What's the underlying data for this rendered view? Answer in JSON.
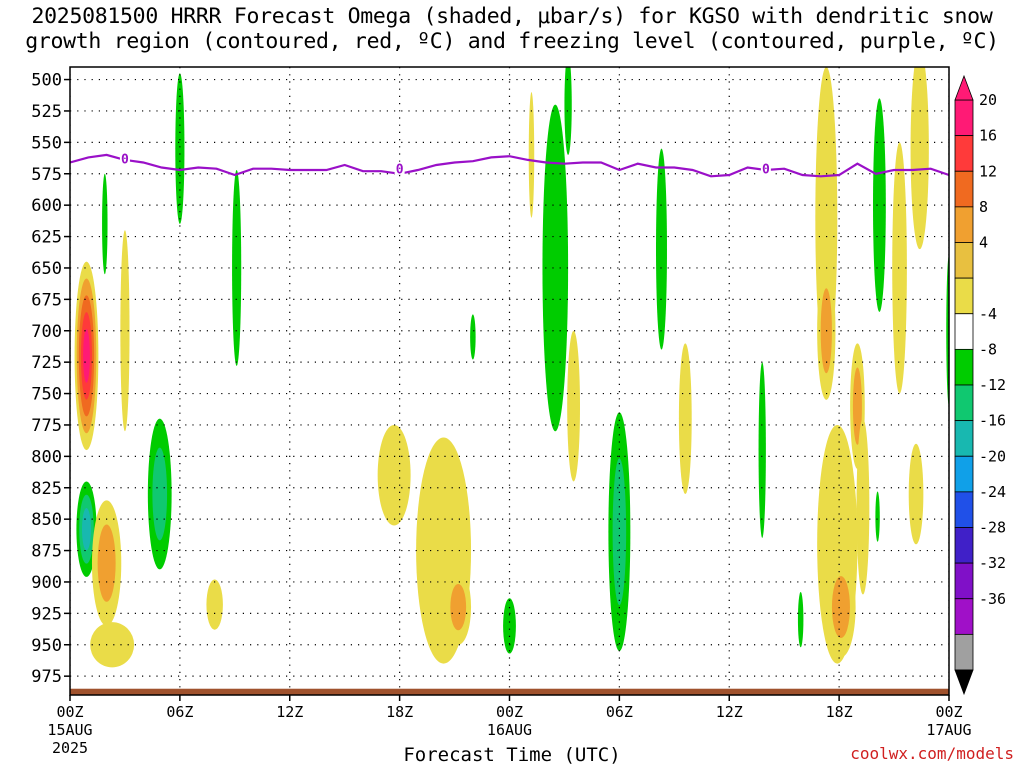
{
  "title": {
    "line1": "2025081500 HRRR Forecast Omega (shaded, μbar/s) for KGSO with dendritic snow",
    "line2": "growth region (contoured, red, ºC) and freezing level (contoured, purple, ºC)"
  },
  "credit": "coolwx.com/models",
  "chart_data": {
    "type": "heatmap",
    "xlabel": "Forecast Time (UTC)",
    "x_ticks": [
      {
        "h": 0,
        "label": "00Z",
        "sub": "15AUG",
        "sub2": "2025"
      },
      {
        "h": 6,
        "label": "06Z",
        "sub": "",
        "sub2": ""
      },
      {
        "h": 12,
        "label": "12Z",
        "sub": "",
        "sub2": ""
      },
      {
        "h": 18,
        "label": "18Z",
        "sub": "",
        "sub2": ""
      },
      {
        "h": 24,
        "label": "00Z",
        "sub": "16AUG",
        "sub2": ""
      },
      {
        "h": 30,
        "label": "06Z",
        "sub": "",
        "sub2": ""
      },
      {
        "h": 36,
        "label": "12Z",
        "sub": "",
        "sub2": ""
      },
      {
        "h": 42,
        "label": "18Z",
        "sub": "",
        "sub2": ""
      },
      {
        "h": 48,
        "label": "00Z",
        "sub": "17AUG",
        "sub2": ""
      }
    ],
    "y_ticks": [
      500,
      525,
      550,
      575,
      600,
      625,
      650,
      675,
      700,
      725,
      750,
      775,
      800,
      825,
      850,
      875,
      900,
      925,
      950,
      975
    ],
    "xlim": [
      0,
      48
    ],
    "ylim": [
      490,
      990
    ],
    "colorbar": {
      "labels": [
        "20",
        "16",
        "12",
        "8",
        "4",
        "-4",
        "-8",
        "-12",
        "-16",
        "-20",
        "-24",
        "-28",
        "-32",
        "-36"
      ],
      "colors": [
        "#ff1a75",
        "#ff3a3a",
        "#f06a20",
        "#f0a030",
        "#e8c040",
        "#eadc48",
        "#ffffff",
        "#00cc00",
        "#10c870",
        "#18b8b0",
        "#10a0e8",
        "#2050e8",
        "#4020c8",
        "#8010c8",
        "#a010c8",
        "#a0a0a0"
      ]
    },
    "freezing_level": {
      "label": "0",
      "points": [
        [
          0,
          566
        ],
        [
          1,
          562
        ],
        [
          2,
          560
        ],
        [
          3,
          564
        ],
        [
          4,
          566
        ],
        [
          5,
          570
        ],
        [
          6,
          572
        ],
        [
          7,
          570
        ],
        [
          8,
          571
        ],
        [
          9,
          576
        ],
        [
          10,
          571
        ],
        [
          11,
          571
        ],
        [
          12,
          572
        ],
        [
          13,
          572
        ],
        [
          14,
          572
        ],
        [
          15,
          568
        ],
        [
          16,
          573
        ],
        [
          17,
          573
        ],
        [
          18,
          575
        ],
        [
          19,
          572
        ],
        [
          20,
          568
        ],
        [
          21,
          566
        ],
        [
          22,
          565
        ],
        [
          23,
          562
        ],
        [
          24,
          561
        ],
        [
          25,
          564
        ],
        [
          26,
          566
        ],
        [
          27,
          567
        ],
        [
          28,
          566
        ],
        [
          29,
          566
        ],
        [
          30,
          572
        ],
        [
          31,
          567
        ],
        [
          32,
          570
        ],
        [
          33,
          570
        ],
        [
          34,
          572
        ],
        [
          35,
          577
        ],
        [
          36,
          576
        ],
        [
          37,
          570
        ],
        [
          38,
          572
        ],
        [
          39,
          571
        ],
        [
          40,
          576
        ],
        [
          41,
          577
        ],
        [
          42,
          576
        ],
        [
          43,
          567
        ],
        [
          44,
          575
        ],
        [
          45,
          572
        ],
        [
          46,
          572
        ],
        [
          47,
          571
        ],
        [
          48,
          576
        ]
      ],
      "label_positions": [
        [
          3,
          563
        ],
        [
          18,
          571
        ],
        [
          38,
          571
        ]
      ]
    },
    "omega_features": [
      {
        "t": 0.9,
        "p": 720,
        "dt": 0.65,
        "dp": 75,
        "v": 20
      },
      {
        "t": 0.9,
        "p": 858,
        "dt": 0.55,
        "dp": 38,
        "v": -14
      },
      {
        "t": 2.0,
        "p": 885,
        "dt": 0.8,
        "dp": 50,
        "v": 11
      },
      {
        "t": 2.3,
        "p": 950,
        "dt": 1.2,
        "dp": 18,
        "v": 5
      },
      {
        "t": 3.0,
        "p": 700,
        "dt": 0.25,
        "dp": 80,
        "v": 5
      },
      {
        "t": 1.9,
        "p": 615,
        "dt": 0.15,
        "dp": 40,
        "v": -6
      },
      {
        "t": 4.9,
        "p": 830,
        "dt": 0.65,
        "dp": 60,
        "v": -11
      },
      {
        "t": 6.0,
        "p": 555,
        "dt": 0.25,
        "dp": 60,
        "v": -6
      },
      {
        "t": 7.9,
        "p": 918,
        "dt": 0.45,
        "dp": 20,
        "v": 6
      },
      {
        "t": 9.1,
        "p": 650,
        "dt": 0.25,
        "dp": 78,
        "v": -6
      },
      {
        "t": 17.7,
        "p": 815,
        "dt": 0.9,
        "dp": 40,
        "v": 6
      },
      {
        "t": 20.4,
        "p": 875,
        "dt": 1.5,
        "dp": 90,
        "v": 7
      },
      {
        "t": 21.2,
        "p": 920,
        "dt": 0.7,
        "dp": 30,
        "v": 10
      },
      {
        "t": 22.0,
        "p": 705,
        "dt": 0.15,
        "dp": 18,
        "v": -6
      },
      {
        "t": 24.0,
        "p": 935,
        "dt": 0.35,
        "dp": 22,
        "v": -6
      },
      {
        "t": 25.2,
        "p": 560,
        "dt": 0.15,
        "dp": 50,
        "v": 5
      },
      {
        "t": 26.5,
        "p": 650,
        "dt": 0.7,
        "dp": 130,
        "v": -7
      },
      {
        "t": 27.2,
        "p": 520,
        "dt": 0.2,
        "dp": 40,
        "v": -6
      },
      {
        "t": 27.5,
        "p": 760,
        "dt": 0.35,
        "dp": 60,
        "v": 5
      },
      {
        "t": 30.0,
        "p": 860,
        "dt": 0.6,
        "dp": 95,
        "v": -9
      },
      {
        "t": 32.3,
        "p": 635,
        "dt": 0.3,
        "dp": 80,
        "v": -6
      },
      {
        "t": 33.6,
        "p": 770,
        "dt": 0.35,
        "dp": 60,
        "v": 5
      },
      {
        "t": 37.8,
        "p": 795,
        "dt": 0.2,
        "dp": 70,
        "v": -6
      },
      {
        "t": 39.9,
        "p": 930,
        "dt": 0.15,
        "dp": 22,
        "v": -6
      },
      {
        "t": 41.3,
        "p": 610,
        "dt": 0.6,
        "dp": 120,
        "v": 5
      },
      {
        "t": 41.3,
        "p": 700,
        "dt": 0.5,
        "dp": 55,
        "v": 10
      },
      {
        "t": 41.9,
        "p": 870,
        "dt": 1.1,
        "dp": 95,
        "v": 6
      },
      {
        "t": 42.1,
        "p": 920,
        "dt": 0.8,
        "dp": 40,
        "v": 10
      },
      {
        "t": 43.0,
        "p": 760,
        "dt": 0.4,
        "dp": 50,
        "v": 9
      },
      {
        "t": 43.3,
        "p": 840,
        "dt": 0.35,
        "dp": 70,
        "v": 5
      },
      {
        "t": 44.2,
        "p": 600,
        "dt": 0.35,
        "dp": 85,
        "v": -6
      },
      {
        "t": 44.1,
        "p": 848,
        "dt": 0.12,
        "dp": 20,
        "v": -6
      },
      {
        "t": 45.3,
        "p": 650,
        "dt": 0.4,
        "dp": 100,
        "v": 4
      },
      {
        "t": 46.4,
        "p": 555,
        "dt": 0.5,
        "dp": 80,
        "v": 6
      },
      {
        "t": 46.2,
        "p": 830,
        "dt": 0.4,
        "dp": 40,
        "v": 5
      },
      {
        "t": 48.0,
        "p": 700,
        "dt": 0.15,
        "dp": 60,
        "v": -6
      }
    ],
    "surface_band": {
      "color": "#a0522d",
      "p_top": 985
    }
  }
}
